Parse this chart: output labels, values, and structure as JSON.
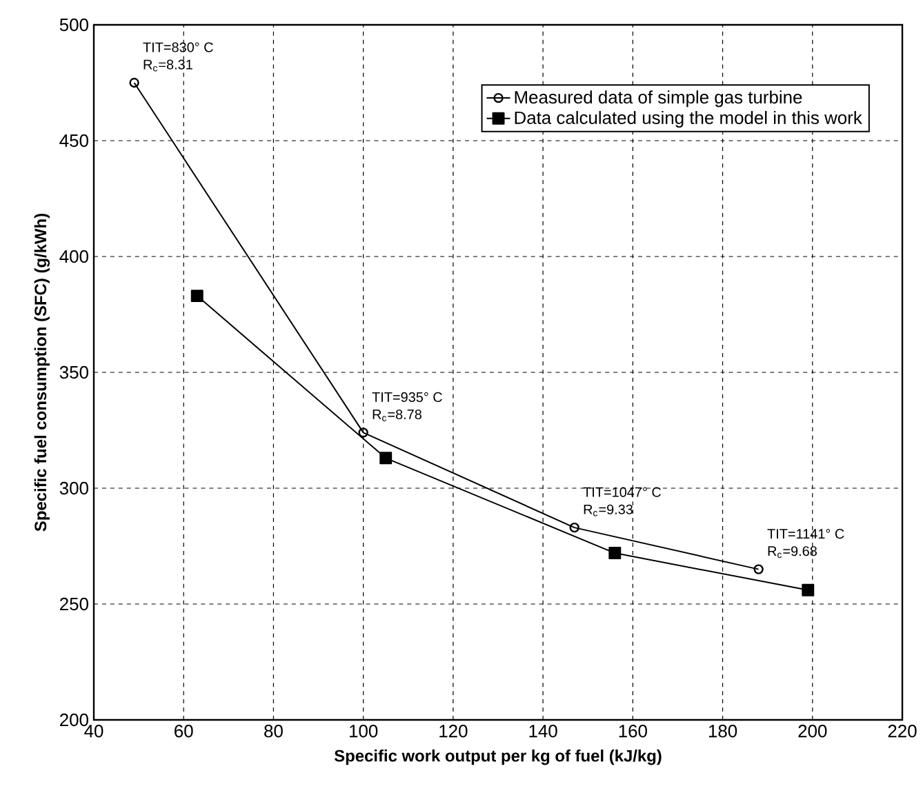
{
  "chart_data": {
    "type": "line",
    "xlabel": "Specific work output per kg of fuel  (kJ/kg)",
    "ylabel": "Specific fuel consumption (SFC) (g/kWh)",
    "series": [
      {
        "name": "Measured data of simple gas turbine",
        "color": "#000000",
        "marker": "circle",
        "x": [
          49,
          100,
          147,
          188
        ],
        "values": [
          475,
          324,
          283,
          265
        ]
      },
      {
        "name": "Data calculated using the model in this work",
        "color": "#000000",
        "marker": "square",
        "x": [
          63,
          105,
          156,
          199
        ],
        "values": [
          383,
          313,
          272,
          256
        ]
      }
    ],
    "xlim": [
      40,
      220
    ],
    "xticks": [
      40,
      60,
      80,
      100,
      120,
      140,
      160,
      180,
      200,
      220
    ],
    "ylim": [
      200,
      500
    ],
    "yticks": [
      200,
      250,
      300,
      350,
      400,
      450,
      500
    ],
    "grid": true,
    "legend": "top right",
    "line_style": "solid",
    "annotations": [
      {
        "text": "TIT=830° C",
        "x": 49,
        "y": 475
      },
      {
        "text": "R$_{c}$=8.31",
        "x": 49,
        "y": 475
      },
      {
        "text": "TIT=935° C",
        "x": 100,
        "y": 324
      },
      {
        "text": "R$_{c}$=8.78",
        "x": 100,
        "y": 324
      },
      {
        "text": "TIT=1047° C",
        "x": 147,
        "y": 283
      },
      {
        "text": "R$_{c}$=9.33",
        "x": 147,
        "y": 283
      },
      {
        "text": "TIT=1141° C",
        "x": 188,
        "y": 265
      },
      {
        "text": "R$_{c}$=9.68",
        "x": 188,
        "y": 265
      }
    ]
  }
}
